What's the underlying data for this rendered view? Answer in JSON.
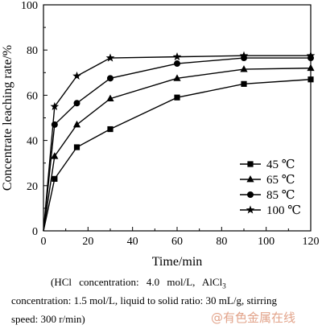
{
  "chart_data": {
    "type": "line",
    "xlabel": "Time/min",
    "ylabel": "Concentrate leaching rate/%",
    "xlim": [
      0,
      120
    ],
    "ylim": [
      0,
      100
    ],
    "xticks": [
      0,
      20,
      40,
      60,
      80,
      100,
      120
    ],
    "yticks": [
      0,
      20,
      40,
      60,
      80,
      100
    ],
    "legend_position": "lower-right",
    "series": [
      {
        "name": "45 ℃",
        "marker": "square",
        "x": [
          0,
          5,
          15,
          30,
          60,
          90,
          120
        ],
        "y": [
          0,
          23,
          37,
          45,
          59,
          65,
          67
        ]
      },
      {
        "name": "65 ℃",
        "marker": "triangle",
        "x": [
          0,
          5,
          15,
          30,
          60,
          90,
          120
        ],
        "y": [
          0,
          33,
          47,
          58.5,
          67.5,
          71.5,
          72
        ]
      },
      {
        "name": "85 ℃",
        "marker": "circle",
        "x": [
          0,
          5,
          15,
          30,
          60,
          90,
          120
        ],
        "y": [
          0,
          47,
          56.5,
          67.5,
          74,
          76.5,
          76.5
        ]
      },
      {
        "name": "100 ℃",
        "marker": "star",
        "x": [
          0,
          5,
          15,
          30,
          60,
          90,
          120
        ],
        "y": [
          0,
          55,
          68.5,
          76.5,
          77,
          77.5,
          77.5
        ]
      }
    ]
  },
  "caption": {
    "line1": "(HCl concentration: 4.0 mol/L, AlCl",
    "line1_sub": "3",
    "line2": "concentration: 1.5 mol/L, liquid to solid ratio: 30 mL/g, stirring",
    "line3": "speed: 300 r/min)"
  },
  "watermark": "@有色金属在线"
}
